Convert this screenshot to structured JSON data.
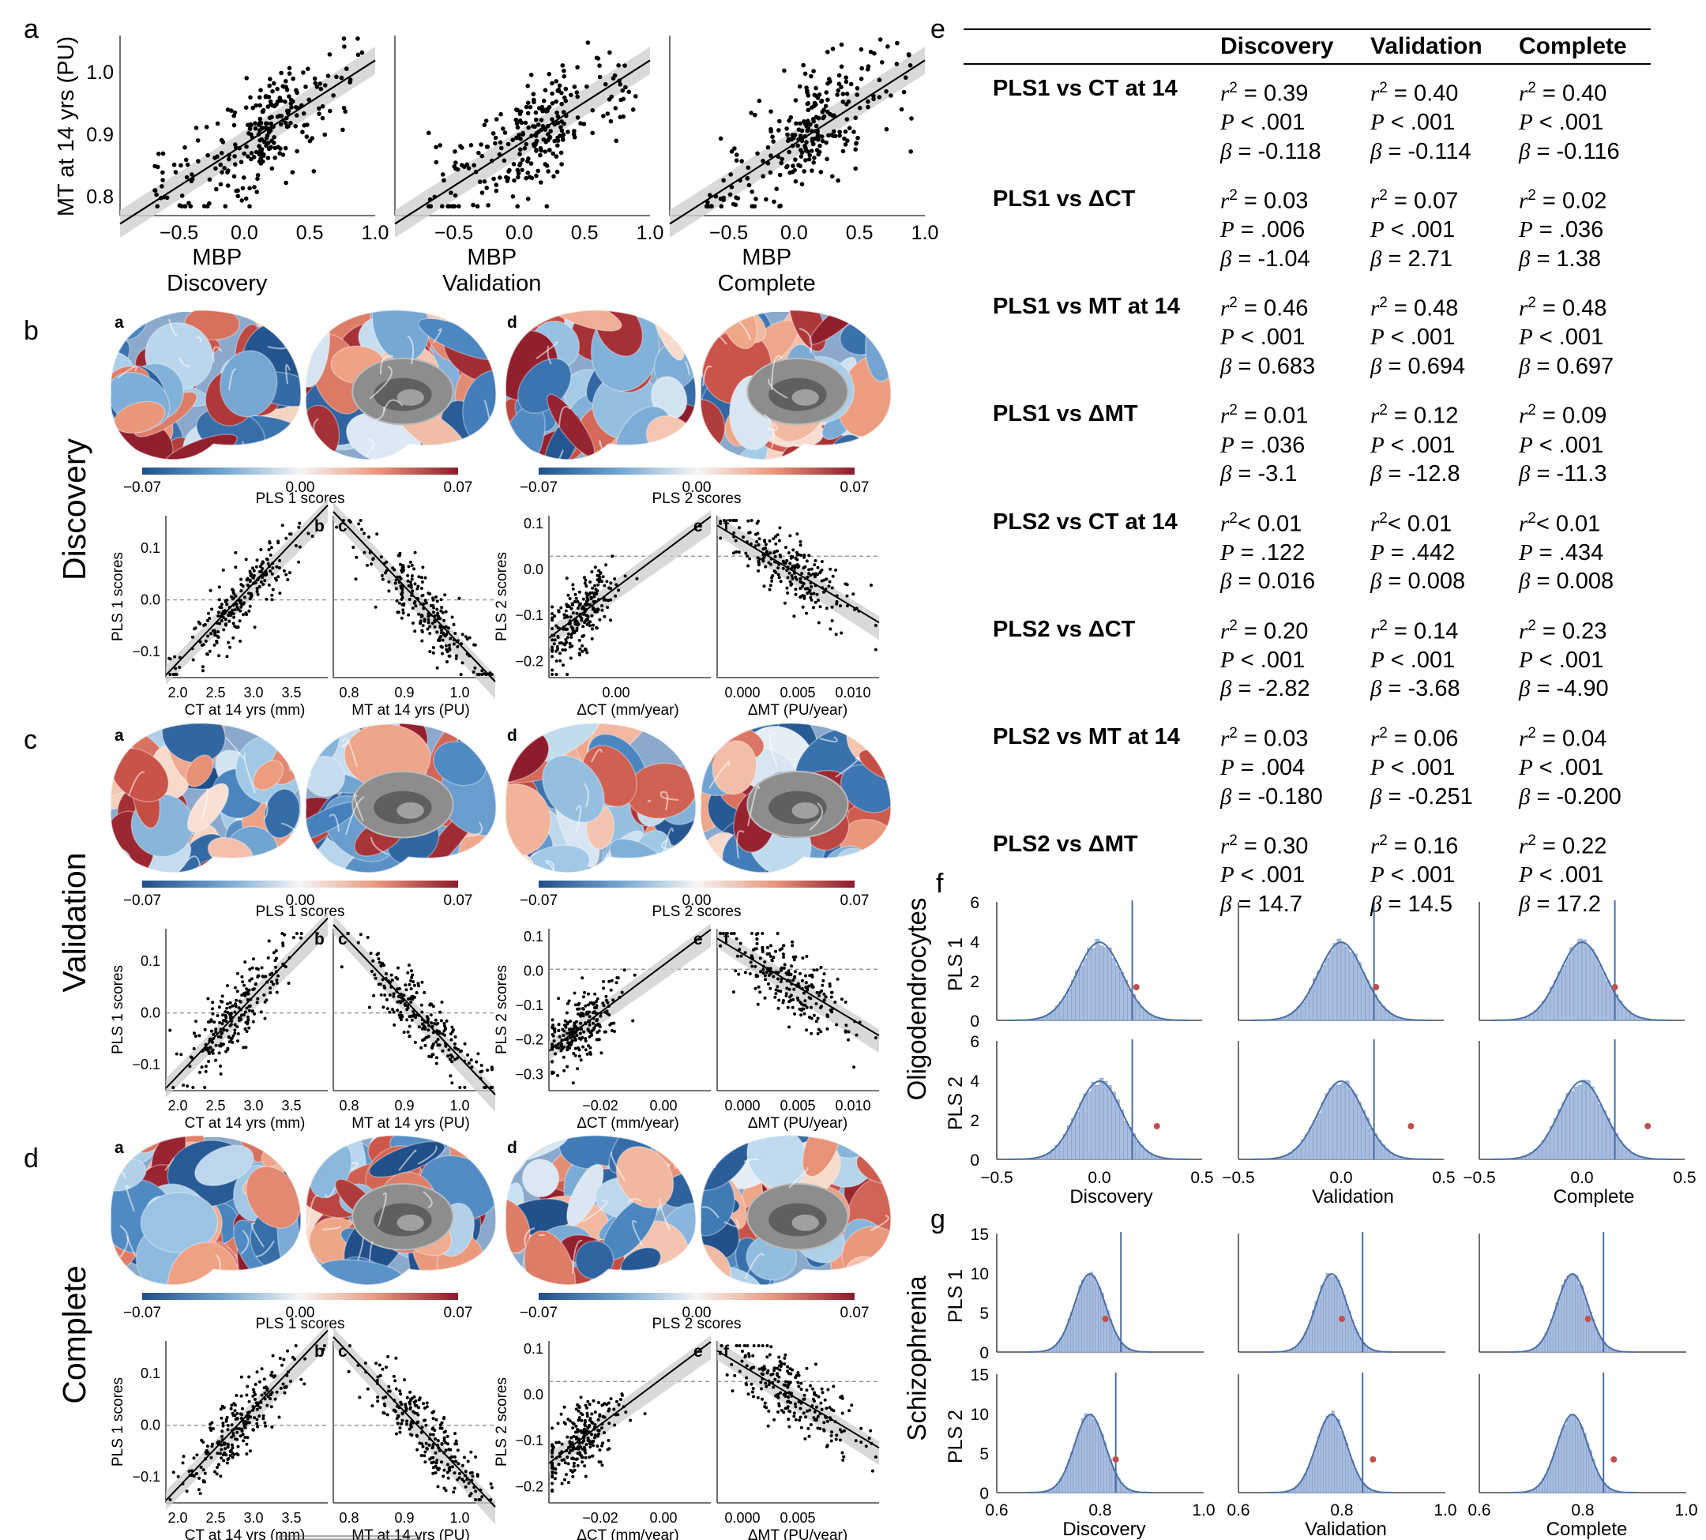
{
  "panel_letters": {
    "a": "a",
    "b": "b",
    "c": "c",
    "d": "d",
    "e": "e",
    "f": "f",
    "g": "g"
  },
  "colors": {
    "brain_neg": "#1f4e89",
    "brain_pos": "#8c1a2b",
    "hist_fill": "#a9bde0",
    "hist_line": "#4a6fa5",
    "obs_dot": "#c0504d"
  },
  "panel_a": {
    "ylabel": "MT at 14 yrs (PU)",
    "xlabel": "MBP",
    "yticks": [
      "1.0",
      "0.9",
      "0.8"
    ],
    "xticks": [
      "−0.5",
      "0.0",
      "0.5",
      "1.0"
    ],
    "subplots": [
      {
        "title": "Discovery"
      },
      {
        "title": "Validation"
      },
      {
        "title": "Complete"
      }
    ]
  },
  "brain_rows": [
    {
      "group": "Discovery",
      "colorbar": {
        "min": "−0.07",
        "mid": "0.00",
        "max": "0.07"
      },
      "pls1_label": "PLS 1 scores",
      "pls2_label": "PLS 2 scores",
      "sub": {
        "a": "a",
        "b": "b",
        "c": "c",
        "d": "d",
        "e": "e",
        "f": "f"
      },
      "b": {
        "xlabel": "CT at 14 yrs (mm)",
        "ylabel": "PLS 1 scores",
        "xticks": [
          "2.0",
          "2.5",
          "3.0",
          "3.5"
        ],
        "yticks": [
          "0.1",
          "0.0",
          "−0.1"
        ]
      },
      "c": {
        "xlabel": "MT at 14 yrs (PU)",
        "xticks": [
          "0.8",
          "0.9",
          "1.0"
        ]
      },
      "e": {
        "xlabel": "ΔCT (mm/year)",
        "ylabel": "PLS 2 scores",
        "xticks": [
          "0.00"
        ],
        "yticks": [
          "0.1",
          "0.0",
          "−0.1",
          "−0.2"
        ]
      },
      "f": {
        "xlabel": "ΔMT (PU/year)",
        "xticks": [
          "0.000",
          "0.005",
          "0.010"
        ]
      }
    },
    {
      "group": "Validation",
      "colorbar": {
        "min": "−0.07",
        "mid": "0.00",
        "max": "0.07"
      },
      "pls1_label": "PLS 1 scores",
      "pls2_label": "PLS 2 scores",
      "sub": {
        "a": "a",
        "b": "b",
        "c": "c",
        "d": "d",
        "e": "e",
        "f": "f"
      },
      "b": {
        "xlabel": "CT at 14 yrs (mm)",
        "ylabel": "PLS 1 scores",
        "xticks": [
          "2.0",
          "2.5",
          "3.0",
          "3.5"
        ],
        "yticks": [
          "0.1",
          "0.0",
          "−0.1"
        ]
      },
      "c": {
        "xlabel": "MT at 14 yrs (PU)",
        "xticks": [
          "0.8",
          "0.9",
          "1.0"
        ]
      },
      "e": {
        "xlabel": "ΔCT (mm/year)",
        "ylabel": "PLS 2 scores",
        "xticks": [
          "−0.02",
          "0.00"
        ],
        "yticks": [
          "0.1",
          "0.0",
          "−0.1",
          "−0.2",
          "−0.3"
        ]
      },
      "f": {
        "xlabel": "ΔMT (PU/year)",
        "xticks": [
          "0.000",
          "0.005",
          "0.010"
        ]
      }
    },
    {
      "group": "Complete",
      "colorbar": {
        "min": "−0.07",
        "mid": "0.00",
        "max": "0.07"
      },
      "pls1_label": "PLS 1 scores",
      "pls2_label": "PLS 2 scores",
      "sub": {
        "a": "a",
        "b": "b",
        "c": "c",
        "d": "d",
        "e": "e",
        "f": "f"
      },
      "b": {
        "xlabel": "CT at 14 yrs (mm)",
        "ylabel": "PLS 1 scores",
        "xticks": [
          "2.0",
          "2.5",
          "3.0",
          "3.5"
        ],
        "yticks": [
          "0.1",
          "0.0",
          "−0.1"
        ]
      },
      "c": {
        "xlabel": "MT at 14 yrs (PU)",
        "xticks": [
          "0.8",
          "0.9",
          "1.0"
        ]
      },
      "e": {
        "xlabel": "ΔCT (mm/year)",
        "ylabel": "PLS 2 scores",
        "xticks": [
          "−0.02",
          "0.00"
        ],
        "yticks": [
          "0.1",
          "0.0",
          "−0.1",
          "−0.2"
        ]
      },
      "f": {
        "xlabel": "ΔMT (PU/year)",
        "xticks": [
          "0.000",
          "0.005"
        ]
      }
    }
  ],
  "table_e": {
    "columns": [
      "Discovery",
      "Validation",
      "Complete"
    ],
    "rows": [
      {
        "label": "PLS1 vs CT at 14",
        "cells": [
          [
            "0.39",
            "< .001",
            "-0.118"
          ],
          [
            "0.40",
            "< .001",
            "-0.114"
          ],
          [
            "0.40",
            "< .001",
            "-0.116"
          ]
        ]
      },
      {
        "label": "PLS1 vs ΔCT",
        "cells": [
          [
            "0.03",
            "= .006",
            "-1.04"
          ],
          [
            "0.07",
            "< .001",
            "2.71"
          ],
          [
            "0.02",
            "= .036",
            "1.38"
          ]
        ]
      },
      {
        "label": "PLS1 vs MT at 14",
        "cells": [
          [
            "0.46",
            "< .001",
            "0.683"
          ],
          [
            "0.48",
            "< .001",
            "0.694"
          ],
          [
            "0.48",
            "< .001",
            "0.697"
          ]
        ]
      },
      {
        "label": "PLS1 vs ΔMT",
        "cells": [
          [
            "0.01",
            "= .036",
            "-3.1"
          ],
          [
            "0.12",
            "< .001",
            "-12.8"
          ],
          [
            "0.09",
            "< .001",
            "-11.3"
          ]
        ]
      },
      {
        "label": "PLS2 vs CT at 14",
        "cells": [
          [
            "< 0.01",
            "= .122",
            "0.016"
          ],
          [
            "< 0.01",
            "= .442",
            "0.008"
          ],
          [
            "< 0.01",
            "= .434",
            "0.008"
          ]
        ]
      },
      {
        "label": "PLS2 vs ΔCT",
        "cells": [
          [
            "0.20",
            "< .001",
            "-2.82"
          ],
          [
            "0.14",
            "< .001",
            "-3.68"
          ],
          [
            "0.23",
            "< .001",
            "-4.90"
          ]
        ]
      },
      {
        "label": "PLS2 vs MT at 14",
        "cells": [
          [
            "0.03",
            "= .004",
            "-0.180"
          ],
          [
            "0.06",
            "< .001",
            "-0.251"
          ],
          [
            "0.04",
            "< .001",
            "-0.200"
          ]
        ]
      },
      {
        "label": "PLS2 vs ΔMT",
        "cells": [
          [
            "0.30",
            "< .001",
            "14.7"
          ],
          [
            "0.16",
            "< .001",
            "14.5"
          ],
          [
            "0.22",
            "< .001",
            "17.2"
          ]
        ]
      }
    ]
  },
  "panel_f": {
    "group_label": "Oligodendrocytes",
    "row_labels": [
      "PLS 1",
      "PLS 2"
    ],
    "yticks": [
      "6",
      "4",
      "2",
      "0"
    ],
    "xticks": [
      "−0.5",
      "0.0",
      "0.5"
    ],
    "columns": [
      "Discovery",
      "Validation",
      "Complete"
    ]
  },
  "panel_g": {
    "group_label": "Schizophrenia",
    "row_labels": [
      "PLS 1",
      "PLS 2"
    ],
    "yticks": [
      "15",
      "10",
      "5",
      "0"
    ],
    "xticks": [
      "0.6",
      "0.8",
      "1.0"
    ],
    "columns": [
      "Discovery",
      "Validation",
      "Complete"
    ]
  },
  "chart_data": [
    {
      "type": "scatter",
      "title": "Discovery",
      "xlabel": "MBP",
      "ylabel": "MT at 14 yrs (PU)",
      "xlim": [
        -0.95,
        1.0
      ],
      "ylim": [
        0.77,
        1.06
      ],
      "fit": {
        "slope": 0.135,
        "intercept": 0.885
      }
    },
    {
      "type": "scatter",
      "title": "Validation",
      "xlabel": "MBP",
      "ylabel": "MT at 14 yrs (PU)",
      "xlim": [
        -0.95,
        1.0
      ],
      "ylim": [
        0.77,
        1.06
      ],
      "fit": {
        "slope": 0.135,
        "intercept": 0.885
      }
    },
    {
      "type": "scatter",
      "title": "Complete",
      "xlabel": "MBP",
      "ylabel": "MT at 14 yrs (PU)",
      "xlim": [
        -0.95,
        1.0
      ],
      "ylim": [
        0.77,
        1.06
      ],
      "fit": {
        "slope": 0.135,
        "intercept": 0.885
      }
    },
    {
      "type": "bar",
      "title": "Oligodendrocytes PLS 1",
      "ylim": [
        0,
        6
      ],
      "xlim": [
        -0.5,
        0.5
      ],
      "observed": [
        0.18,
        0.17,
        0.16
      ]
    },
    {
      "type": "bar",
      "title": "Oligodendrocytes PLS 2",
      "ylim": [
        0,
        6
      ],
      "xlim": [
        -0.5,
        0.5
      ],
      "observed": [
        0.28,
        0.34,
        0.32
      ]
    },
    {
      "type": "bar",
      "title": "Schizophrenia PLS 1",
      "ylim": [
        0,
        15
      ],
      "xlim": [
        0.6,
        1.0
      ],
      "observed": [
        0.84,
        0.84,
        0.84
      ]
    },
    {
      "type": "bar",
      "title": "Schizophrenia PLS 2",
      "ylim": [
        0,
        15
      ],
      "xlim": [
        0.6,
        1.0
      ],
      "observed": [
        0.83,
        0.84,
        0.84
      ]
    }
  ]
}
